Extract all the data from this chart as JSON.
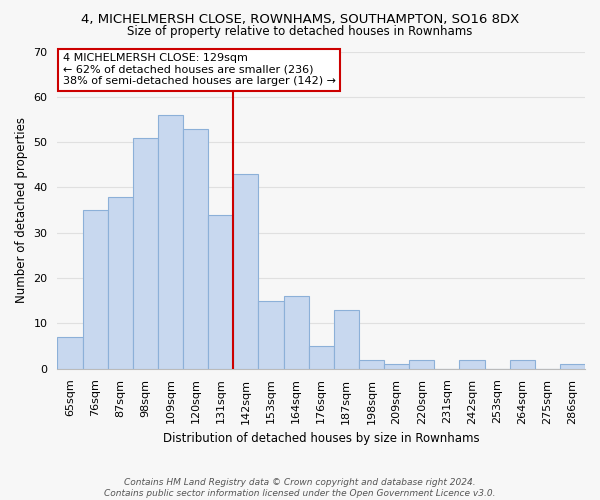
{
  "title": "4, MICHELMERSH CLOSE, ROWNHAMS, SOUTHAMPTON, SO16 8DX",
  "subtitle": "Size of property relative to detached houses in Rownhams",
  "xlabel": "Distribution of detached houses by size in Rownhams",
  "ylabel": "Number of detached properties",
  "categories": [
    "65sqm",
    "76sqm",
    "87sqm",
    "98sqm",
    "109sqm",
    "120sqm",
    "131sqm",
    "142sqm",
    "153sqm",
    "164sqm",
    "176sqm",
    "187sqm",
    "198sqm",
    "209sqm",
    "220sqm",
    "231sqm",
    "242sqm",
    "253sqm",
    "264sqm",
    "275sqm",
    "286sqm"
  ],
  "values": [
    7,
    35,
    38,
    51,
    56,
    53,
    34,
    43,
    15,
    16,
    5,
    13,
    2,
    1,
    2,
    0,
    2,
    0,
    2,
    0,
    1
  ],
  "bar_color": "#c8d8ef",
  "bar_edge_color": "#8cb0d8",
  "highlight_line_index": 6,
  "highlight_line_color": "#cc0000",
  "ylim": [
    0,
    70
  ],
  "yticks": [
    0,
    10,
    20,
    30,
    40,
    50,
    60,
    70
  ],
  "annotation_line1": "4 MICHELMERSH CLOSE: 129sqm",
  "annotation_line2": "← 62% of detached houses are smaller (236)",
  "annotation_line3": "38% of semi-detached houses are larger (142) →",
  "footer_line1": "Contains HM Land Registry data © Crown copyright and database right 2024.",
  "footer_line2": "Contains public sector information licensed under the Open Government Licence v3.0.",
  "background_color": "#f7f7f7",
  "grid_color": "#e0e0e0",
  "title_fontsize": 9.5,
  "subtitle_fontsize": 8.5,
  "ylabel_fontsize": 8.5,
  "xlabel_fontsize": 8.5,
  "tick_fontsize": 8,
  "ann_fontsize": 8,
  "footer_fontsize": 6.5
}
